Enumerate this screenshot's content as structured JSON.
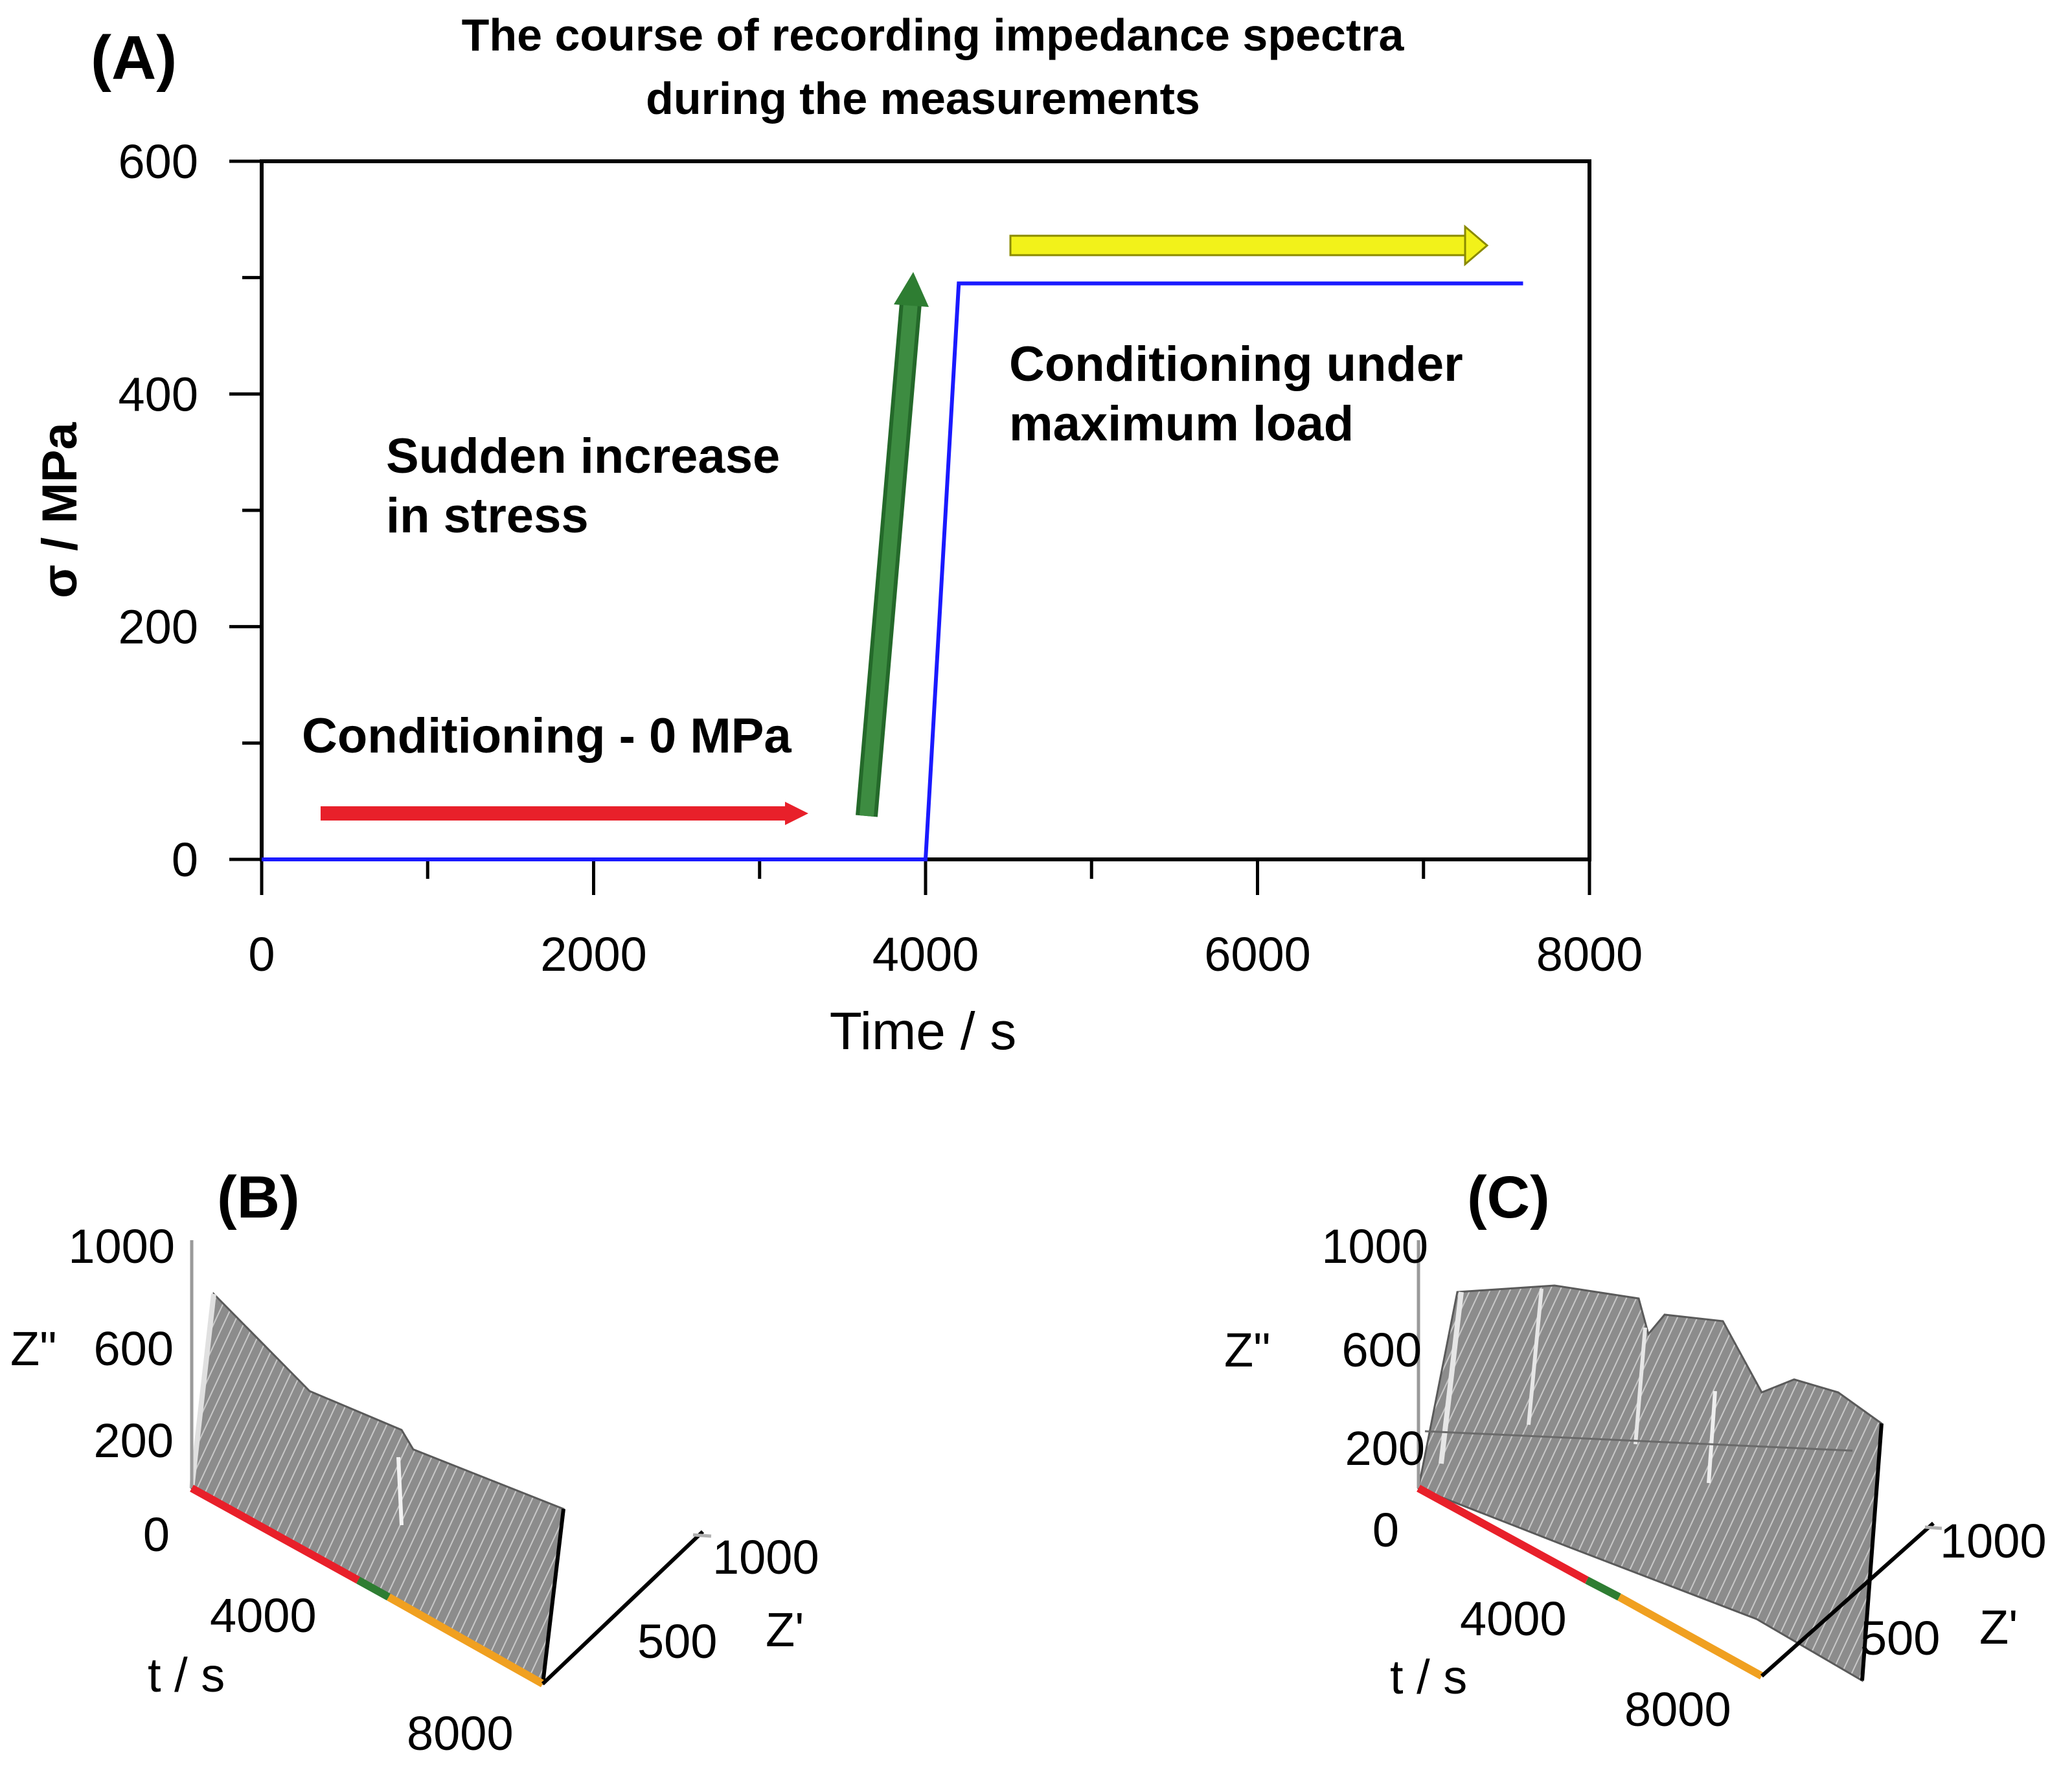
{
  "panel_a": {
    "label": "(A)",
    "title_line1": "The course of recording impedance spectra",
    "title_line2": "during the measurements",
    "annotations": {
      "conditioning_zero": "Conditioning - 0 MPa",
      "sudden_line1": "Sudden increase",
      "sudden_line2": "in stress",
      "max_line1": "Conditioning under",
      "max_line2": "maximum load"
    },
    "colors": {
      "line": "#1a1aff",
      "arrow_zero": "#e8202a",
      "arrow_sudden": "#2e7d32",
      "arrow_max": "#f2f21a"
    }
  },
  "panel_b": {
    "label": "(B)",
    "z_ticks": [
      "1000",
      "600",
      "200",
      "0"
    ],
    "z_axis_label": "Z\"",
    "t_tick": "4000",
    "t_label": "t / s",
    "t_end": "8000",
    "zp_ticks": [
      "1000",
      "500"
    ],
    "zp_label": "Z'"
  },
  "panel_c": {
    "label": "(C)",
    "z_ticks": [
      "1000",
      "600",
      "200",
      "0"
    ],
    "z_axis_label": "Z\"",
    "t_tick": "4000",
    "t_label": "t / s",
    "t_end": "8000",
    "zp_ticks": [
      "1000",
      "500"
    ],
    "zp_label": "Z'"
  },
  "chart_data": {
    "type": "line",
    "title": "The course of recording impedance spectra during the measurements",
    "xlabel": "Time / s",
    "ylabel": "σ / MPa",
    "xlim": [
      0,
      8000
    ],
    "ylim": [
      0,
      600
    ],
    "xticks": [
      0,
      2000,
      4000,
      6000,
      8000
    ],
    "yticks": [
      0,
      200,
      400,
      600
    ],
    "series": [
      {
        "name": "stress",
        "x": [
          0,
          4000,
          4200,
          7600
        ],
        "y": [
          0,
          0,
          495,
          495
        ]
      }
    ]
  }
}
